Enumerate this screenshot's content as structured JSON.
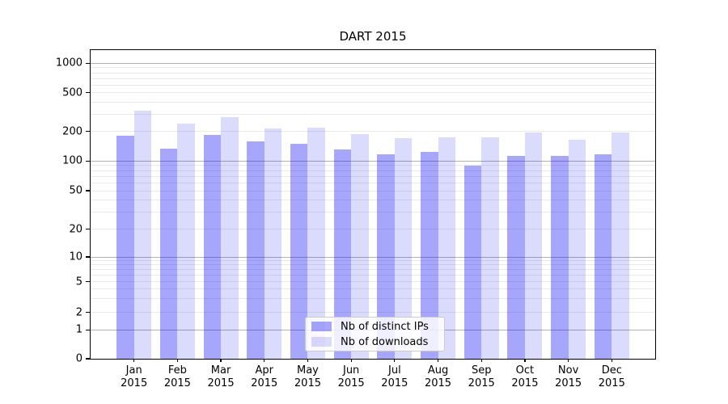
{
  "chart_data": {
    "type": "bar",
    "title": "DART 2015",
    "yscale": "symlog",
    "xlabel": "",
    "ylabel": "",
    "grid": "on",
    "legend_position": "lower-center",
    "categories": [
      "Jan",
      "Feb",
      "Mar",
      "Apr",
      "May",
      "Jun",
      "Jul",
      "Aug",
      "Sep",
      "Oct",
      "Nov",
      "Dec"
    ],
    "category_year": "2015",
    "series": [
      {
        "name": "Nb of distinct IPs",
        "color": "rgba(0,0,245,0.35)",
        "values": [
          180,
          135,
          185,
          160,
          150,
          130,
          118,
          123,
          90,
          112,
          113,
          117
        ]
      },
      {
        "name": "Nb of downloads",
        "color": "rgba(0,0,245,0.14)",
        "values": [
          330,
          240,
          280,
          215,
          218,
          190,
          172,
          175,
          173,
          195,
          165,
          196
        ]
      }
    ],
    "yticks": [
      1000,
      500,
      200,
      100,
      50,
      20,
      10,
      5,
      2,
      1,
      0
    ],
    "ylim": [
      0,
      1360
    ],
    "grid_major_values": [
      1,
      10,
      100,
      1000
    ],
    "grid_minor_values": [
      2,
      3,
      4,
      5,
      6,
      7,
      8,
      9,
      20,
      30,
      40,
      50,
      60,
      70,
      80,
      90,
      200,
      300,
      400,
      500,
      600,
      700,
      800,
      900
    ]
  },
  "legend": {
    "items": [
      {
        "label": "Nb of distinct IPs"
      },
      {
        "label": "Nb of downloads"
      }
    ]
  }
}
